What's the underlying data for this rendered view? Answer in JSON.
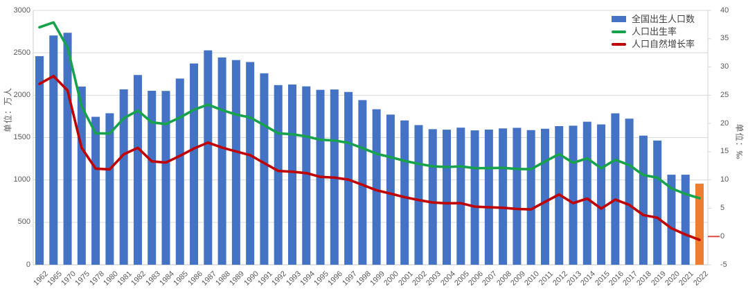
{
  "chart_data": {
    "type": "combo-bar-line",
    "title": "",
    "categories": [
      "1962",
      "1965",
      "1970",
      "1975",
      "1978",
      "1980",
      "1981",
      "1982",
      "1983",
      "1984",
      "1985",
      "1986",
      "1987",
      "1988",
      "1989",
      "1990",
      "1991",
      "1992",
      "1993",
      "1994",
      "1995",
      "1996",
      "1997",
      "1998",
      "1999",
      "2000",
      "2001",
      "2002",
      "2003",
      "2004",
      "2005",
      "2006",
      "2007",
      "2008",
      "2009",
      "2010",
      "2011",
      "2012",
      "2013",
      "2014",
      "2015",
      "2016",
      "2017",
      "2018",
      "2019",
      "2020",
      "2021",
      "2022"
    ],
    "series": [
      {
        "name": "全国出生人口数",
        "type": "bar",
        "axis": "left",
        "color": "#4472C4",
        "highlight_color": "#ED7D31",
        "highlight_index": 47,
        "values": [
          2460,
          2704,
          2736,
          2102,
          1745,
          1787,
          2069,
          2238,
          2052,
          2050,
          2196,
          2374,
          2529,
          2445,
          2414,
          2391,
          2258,
          2119,
          2126,
          2104,
          2063,
          2067,
          2038,
          1942,
          1834,
          1771,
          1702,
          1647,
          1599,
          1593,
          1617,
          1585,
          1594,
          1608,
          1615,
          1588,
          1604,
          1635,
          1640,
          1687,
          1655,
          1786,
          1723,
          1523,
          1465,
          1062,
          1062,
          956
        ]
      },
      {
        "name": "人口出生率",
        "type": "line",
        "axis": "right",
        "color": "#17A24C",
        "values": [
          37.01,
          37.88,
          33.43,
          23.01,
          18.25,
          18.21,
          20.91,
          22.28,
          20.19,
          19.9,
          21.04,
          22.43,
          23.33,
          22.37,
          21.58,
          21.06,
          19.68,
          18.24,
          18.09,
          17.7,
          17.12,
          16.98,
          16.57,
          15.64,
          14.64,
          14.03,
          13.38,
          12.86,
          12.41,
          12.29,
          12.4,
          12.09,
          12.1,
          12.14,
          11.95,
          11.9,
          13.27,
          14.57,
          13.03,
          13.83,
          12.07,
          13.57,
          12.64,
          10.86,
          10.41,
          8.52,
          7.52,
          6.77
        ]
      },
      {
        "name": "人口自然增长率",
        "type": "line",
        "axis": "right",
        "color": "#C00000",
        "values": [
          26.99,
          28.38,
          25.83,
          15.69,
          12.0,
          11.87,
          14.55,
          15.68,
          13.29,
          13.08,
          14.26,
          15.57,
          16.61,
          15.73,
          15.04,
          14.39,
          12.98,
          11.6,
          11.45,
          11.21,
          10.55,
          10.42,
          10.06,
          9.14,
          8.18,
          7.58,
          6.95,
          6.45,
          6.01,
          5.87,
          5.89,
          5.28,
          5.17,
          5.08,
          4.87,
          4.79,
          6.13,
          7.43,
          5.9,
          6.71,
          4.93,
          6.53,
          5.58,
          3.78,
          3.32,
          1.45,
          0.34,
          -0.6
        ]
      }
    ],
    "left_axis": {
      "title": "单位：万人",
      "min": 0,
      "max": 3000,
      "step": 500
    },
    "right_axis": {
      "title": "单位：‰",
      "min": -5,
      "max": 40,
      "step": 5,
      "zero_marker_color": "#DD4A3E"
    },
    "legend": {
      "position": "top-right"
    },
    "grid": true,
    "gridline_color": "#D9D9D9",
    "axis_line_color": "#D0D0D0",
    "tick_text_color": "#595959"
  }
}
